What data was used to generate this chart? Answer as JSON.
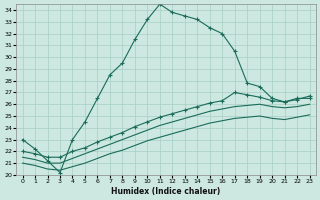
{
  "xlabel": "Humidex (Indice chaleur)",
  "ylabel": "",
  "xlim": [
    -0.5,
    23.5
  ],
  "ylim": [
    20,
    34.5
  ],
  "yticks": [
    20,
    21,
    22,
    23,
    24,
    25,
    26,
    27,
    28,
    29,
    30,
    31,
    32,
    33,
    34
  ],
  "xticks": [
    0,
    1,
    2,
    3,
    4,
    5,
    6,
    7,
    8,
    9,
    10,
    11,
    12,
    13,
    14,
    15,
    16,
    17,
    18,
    19,
    20,
    21,
    22,
    23
  ],
  "bg_color": "#cce8e0",
  "line_color": "#1a6b5a",
  "grid_color": "#a8cfc4",
  "series1": [
    23.0,
    22.2,
    21.2,
    20.2,
    23.0,
    24.5,
    26.5,
    28.5,
    29.5,
    31.5,
    33.2,
    34.5,
    33.8,
    33.5,
    33.2,
    32.5,
    32.0,
    30.5,
    27.8,
    27.5,
    26.5,
    26.2,
    26.5,
    26.5
  ],
  "series2": [
    22.0,
    21.8,
    21.5,
    21.5,
    22.0,
    22.3,
    22.8,
    23.2,
    23.6,
    24.1,
    24.5,
    24.9,
    25.2,
    25.5,
    25.8,
    26.1,
    26.3,
    27.0,
    26.8,
    26.6,
    26.3,
    26.2,
    26.4,
    26.7
  ],
  "series3": [
    21.5,
    21.3,
    21.0,
    21.0,
    21.4,
    21.8,
    22.2,
    22.6,
    23.0,
    23.4,
    23.8,
    24.2,
    24.5,
    24.8,
    25.1,
    25.4,
    25.6,
    25.8,
    25.9,
    26.0,
    25.8,
    25.7,
    25.8,
    26.0
  ],
  "series4": [
    21.0,
    20.8,
    20.5,
    20.4,
    20.7,
    21.0,
    21.4,
    21.8,
    22.1,
    22.5,
    22.9,
    23.2,
    23.5,
    23.8,
    24.1,
    24.4,
    24.6,
    24.8,
    24.9,
    25.0,
    24.8,
    24.7,
    24.9,
    25.1
  ]
}
